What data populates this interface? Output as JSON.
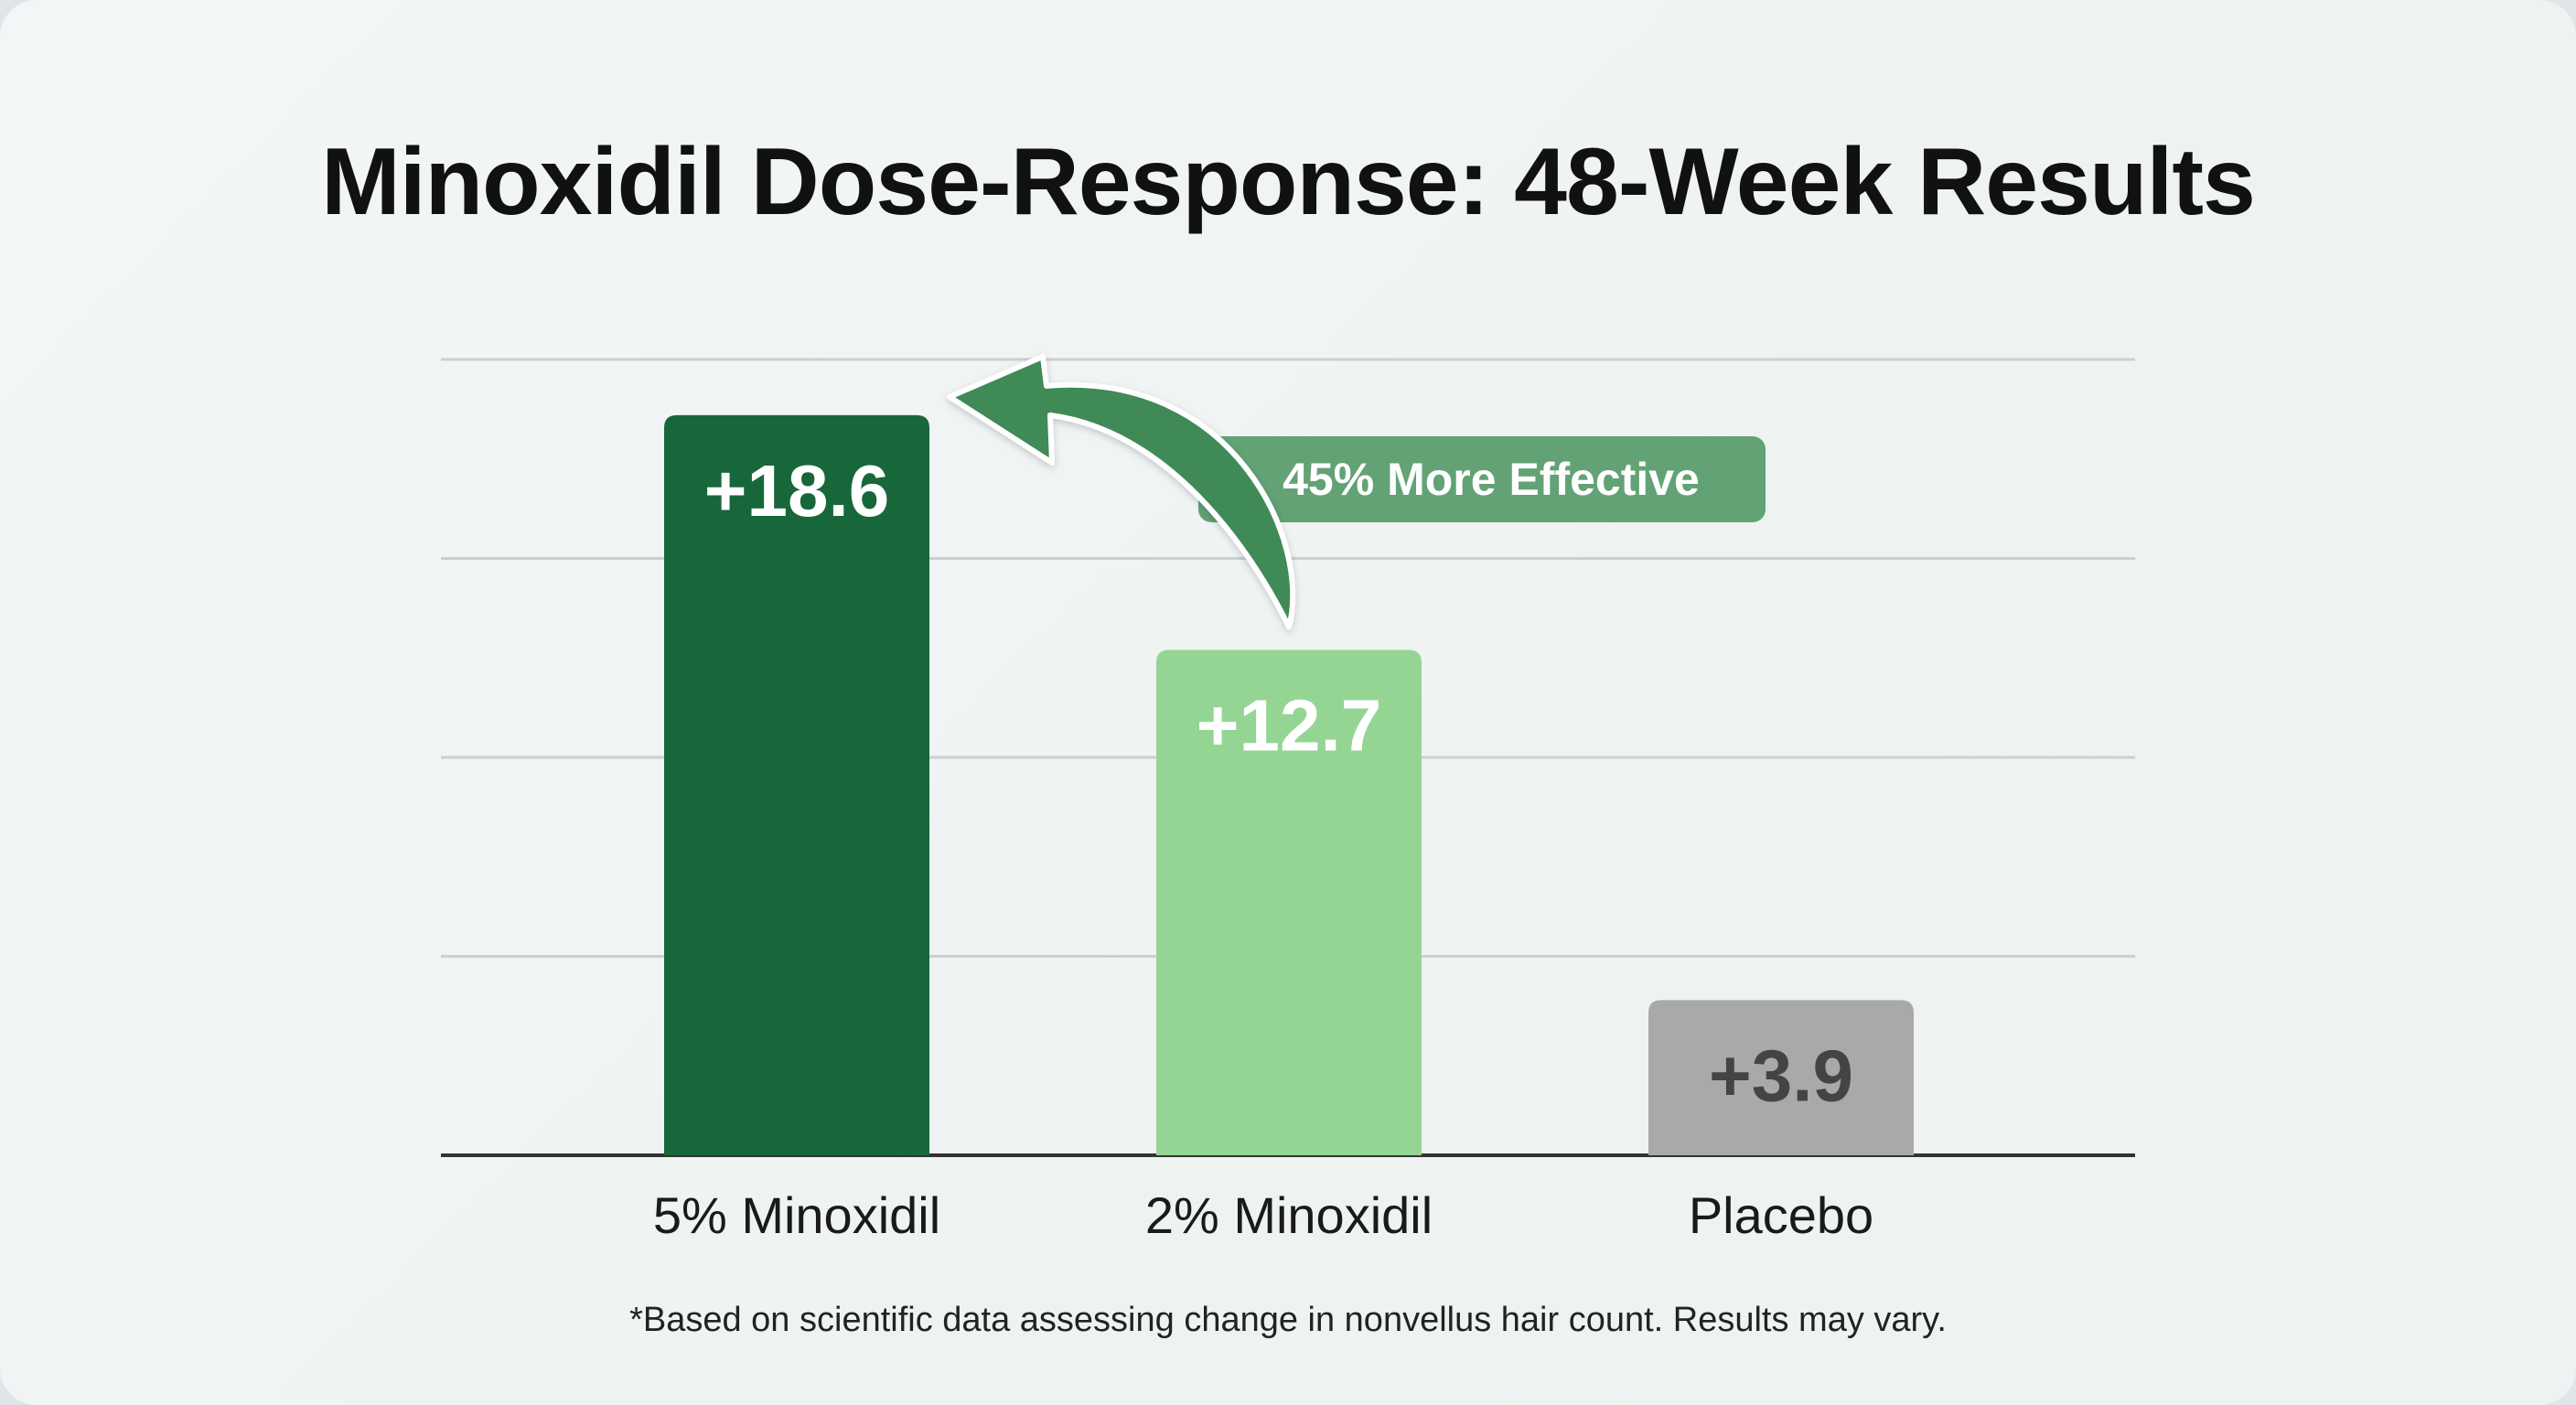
{
  "chart_data": {
    "type": "bar",
    "title": "Minoxidil Dose-Response: 48-Week Results",
    "categories": [
      "5% Minoxidil",
      "2% Minoxidil",
      "Placebo"
    ],
    "values": [
      18.6,
      12.7,
      3.9
    ],
    "value_labels": [
      "+18.6",
      "+12.7",
      "+3.9"
    ],
    "colors": [
      "#17673a",
      "#95d594",
      "#a9a9a9"
    ],
    "label_colors": [
      "#ffffff",
      "#ffffff",
      "#444444"
    ],
    "ylim": [
      0,
      20
    ],
    "grid": true,
    "xlabel": "",
    "ylabel": "",
    "annotation": {
      "text": "45% More Effective",
      "from": "2% Minoxidil",
      "to": "5% Minoxidil",
      "color": "#5a9d6e"
    }
  },
  "footnote": "*Based on scientific data assessing change in nonvellus hair count. Results may vary."
}
